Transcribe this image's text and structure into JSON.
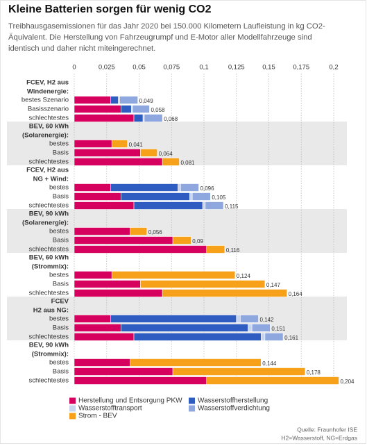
{
  "chart_data": {
    "type": "bar",
    "orientation": "horizontal",
    "stacked": true,
    "title": "Kleine Batterien sorgen für wenig CO2",
    "subtitle": [
      "Treibhausgasemissionen für das Jahr 2020 bei 150.000 Kilometern Laufleistung in kg CO2-",
      "Äquivalent. Die Herstellung von Fahrzeugrumpf und E-Motor aller Modellfahrzeuge sind",
      "identisch und daher nicht miteingerechnet."
    ],
    "xlim": [
      0,
      0.2
    ],
    "xticks": [
      0,
      {
        "value": 0.025,
        "label": "0,025"
      },
      {
        "value": 0.05,
        "label": "0,05"
      },
      {
        "value": 0.075,
        "label": "0,075"
      },
      {
        "value": 0.1,
        "label": "0,1"
      },
      {
        "value": 0.125,
        "label": "0,125"
      },
      {
        "value": 0.15,
        "label": "0,15"
      },
      {
        "value": 0.175,
        "label": "0,175"
      },
      {
        "value": 0.2,
        "label": "0,2"
      }
    ],
    "grid": true,
    "series": [
      {
        "name": "Herstellung und Entsorgung PKW",
        "color": "#d6005e"
      },
      {
        "name": "Wasserstoffherstellung",
        "color": "#2e5cc0"
      },
      {
        "name": "Wasserstofftransport",
        "color": "#c9d4ee"
      },
      {
        "name": "Wasserstoffverdichtung",
        "color": "#8fa7df"
      },
      {
        "name": "Strom - BEV",
        "color": "#f7a11a"
      }
    ],
    "groups": [
      {
        "label": [
          "FCEV, H2 aus",
          "Windenergie:"
        ],
        "categories": [
          "bestes Szenario",
          "Basisszenario",
          "schlechtestes"
        ],
        "values": [
          [
            0.028,
            0.036,
            0.046
          ],
          [
            0.006,
            0.008,
            0.007
          ],
          [
            0.001,
            0.001,
            0.001
          ],
          [
            0.014,
            0.013,
            0.014
          ],
          [
            null,
            null,
            null
          ]
        ],
        "totals": [
          0.049,
          0.058,
          0.068
        ],
        "total_labels": [
          "0,049",
          "0,058",
          "0,068"
        ]
      },
      {
        "label": [
          "BEV, 60 kWh",
          "(Solarenergie):"
        ],
        "categories": [
          "bestes",
          "Basis",
          "schlechtestes"
        ],
        "values": [
          [
            0.029,
            0.051,
            0.068
          ],
          [
            null,
            null,
            null
          ],
          [
            null,
            null,
            null
          ],
          [
            null,
            null,
            null
          ],
          [
            0.012,
            0.013,
            0.013
          ]
        ],
        "totals": [
          0.041,
          0.064,
          0.081
        ],
        "total_labels": [
          "0,041",
          "0,064",
          "0,081"
        ]
      },
      {
        "label": [
          "FCEV, H2 aus",
          "NG + Wind:"
        ],
        "categories": [
          "bestes",
          "Basis",
          "schlechtestes"
        ],
        "values": [
          [
            0.028,
            0.036,
            0.046
          ],
          [
            0.052,
            0.053,
            0.053
          ],
          [
            0.002,
            0.002,
            0.002
          ],
          [
            0.014,
            0.014,
            0.014
          ],
          [
            null,
            null,
            null
          ]
        ],
        "totals": [
          0.096,
          0.105,
          0.115
        ],
        "total_labels": [
          "0,096",
          "0,105",
          "0,115"
        ]
      },
      {
        "label": [
          "BEV, 90 kWh",
          "(Solarenergie):"
        ],
        "categories": [
          "bestes",
          "Basis",
          "schlechtestes"
        ],
        "values": [
          [
            0.043,
            0.076,
            0.102
          ],
          [
            null,
            null,
            null
          ],
          [
            null,
            null,
            null
          ],
          [
            null,
            null,
            null
          ],
          [
            0.013,
            0.014,
            0.014
          ]
        ],
        "totals": [
          0.056,
          0.09,
          0.116
        ],
        "total_labels": [
          "0,056",
          "0,09",
          "0,116"
        ]
      },
      {
        "label": [
          "BEV, 60 kWh",
          "(Strommix):"
        ],
        "categories": [
          "bestes",
          "Basis",
          "schlechtestes"
        ],
        "values": [
          [
            0.029,
            0.051,
            0.068
          ],
          [
            null,
            null,
            null
          ],
          [
            null,
            null,
            null
          ],
          [
            null,
            null,
            null
          ],
          [
            0.095,
            0.096,
            0.096
          ]
        ],
        "totals": [
          0.124,
          0.147,
          0.164
        ],
        "total_labels": [
          "0,124",
          "0,147",
          "0,164"
        ]
      },
      {
        "label": [
          "FCEV",
          "H2 aus NG:"
        ],
        "categories": [
          "bestes",
          "Basis",
          "schlechtestes"
        ],
        "values": [
          [
            0.028,
            0.036,
            0.046
          ],
          [
            0.097,
            0.098,
            0.098
          ],
          [
            0.003,
            0.003,
            0.003
          ],
          [
            0.014,
            0.014,
            0.014
          ],
          [
            null,
            null,
            null
          ]
        ],
        "totals": [
          0.142,
          0.151,
          0.161
        ],
        "total_labels": [
          "0,142",
          "0,151",
          "0,161"
        ]
      },
      {
        "label": [
          "BEV, 90 kWh",
          "(Strommix):"
        ],
        "categories": [
          "bestes",
          "Basis",
          "schlechtestes"
        ],
        "values": [
          [
            0.043,
            0.076,
            0.102
          ],
          [
            null,
            null,
            null
          ],
          [
            null,
            null,
            null
          ],
          [
            null,
            null,
            null
          ],
          [
            0.101,
            0.102,
            0.102
          ]
        ],
        "totals": [
          0.144,
          0.178,
          0.204
        ],
        "total_labels": [
          "0,144",
          "0,178",
          "0,204"
        ]
      }
    ],
    "source": [
      "Quelle: Fraunhofer ISE",
      "H2=Wasserstoff, NG=Erdgas"
    ]
  }
}
